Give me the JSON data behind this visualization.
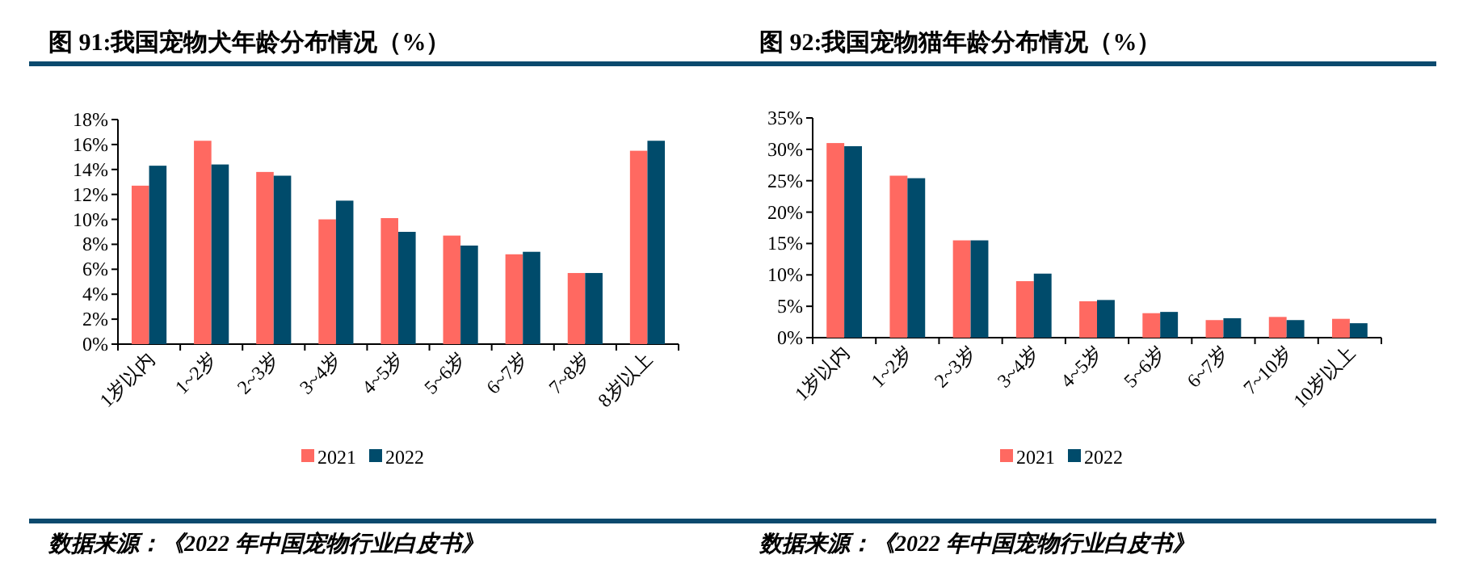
{
  "chart_data": [
    {
      "type": "bar",
      "title": "图 91:我国宠物犬年龄分布情况（%）",
      "categories": [
        "1岁以内",
        "1~2岁",
        "2~3岁",
        "3~4岁",
        "4~5岁",
        "5~6岁",
        "6~7岁",
        "7~8岁",
        "8岁以上"
      ],
      "series": [
        {
          "name": "2021",
          "color": "#ff6961",
          "values": [
            12.7,
            16.3,
            13.8,
            10.0,
            10.1,
            8.7,
            7.2,
            5.7,
            15.5
          ]
        },
        {
          "name": "2022",
          "color": "#004b6b",
          "values": [
            14.3,
            14.4,
            13.5,
            11.5,
            9.0,
            7.9,
            7.4,
            5.7,
            16.3
          ]
        }
      ],
      "ylim": [
        0,
        18
      ],
      "yticks": [
        {
          "value": 0,
          "label": "0%"
        },
        {
          "value": 2,
          "label": "2%"
        },
        {
          "value": 4,
          "label": "4%"
        },
        {
          "value": 6,
          "label": "6%"
        },
        {
          "value": 8,
          "label": "8%"
        },
        {
          "value": 10,
          "label": "10%"
        },
        {
          "value": 12,
          "label": "12%"
        },
        {
          "value": 14,
          "label": "14%"
        },
        {
          "value": 16,
          "label": "16%"
        },
        {
          "value": 18,
          "label": "18%"
        }
      ],
      "legend": "bottom",
      "annotations": [
        "数据来源：《2022 年中国宠物行业白皮书》"
      ]
    },
    {
      "type": "bar",
      "title": "图 92:我国宠物猫年龄分布情况（%）",
      "categories": [
        "1岁以内",
        "1~2岁",
        "2~3岁",
        "3~4岁",
        "4~5岁",
        "5~6岁",
        "6~7岁",
        "7~10岁",
        "10岁以上"
      ],
      "series": [
        {
          "name": "2021",
          "color": "#ff6961",
          "values": [
            31.0,
            25.8,
            15.5,
            9.0,
            5.8,
            3.9,
            2.8,
            3.3,
            3.0
          ]
        },
        {
          "name": "2022",
          "color": "#004b6b",
          "values": [
            30.5,
            25.4,
            15.5,
            10.2,
            6.0,
            4.1,
            3.1,
            2.8,
            2.3
          ]
        }
      ],
      "ylim": [
        0,
        35
      ],
      "yticks": [
        {
          "value": 0,
          "label": "0%"
        },
        {
          "value": 5,
          "label": "5%"
        },
        {
          "value": 10,
          "label": "10%"
        },
        {
          "value": 15,
          "label": "15%"
        },
        {
          "value": 20,
          "label": "20%"
        },
        {
          "value": 25,
          "label": "25%"
        },
        {
          "value": 30,
          "label": "30%"
        },
        {
          "value": 35,
          "label": "35%"
        }
      ],
      "legend": "bottom",
      "annotations": [
        "数据来源：《2022 年中国宠物行业白皮书》"
      ]
    }
  ]
}
